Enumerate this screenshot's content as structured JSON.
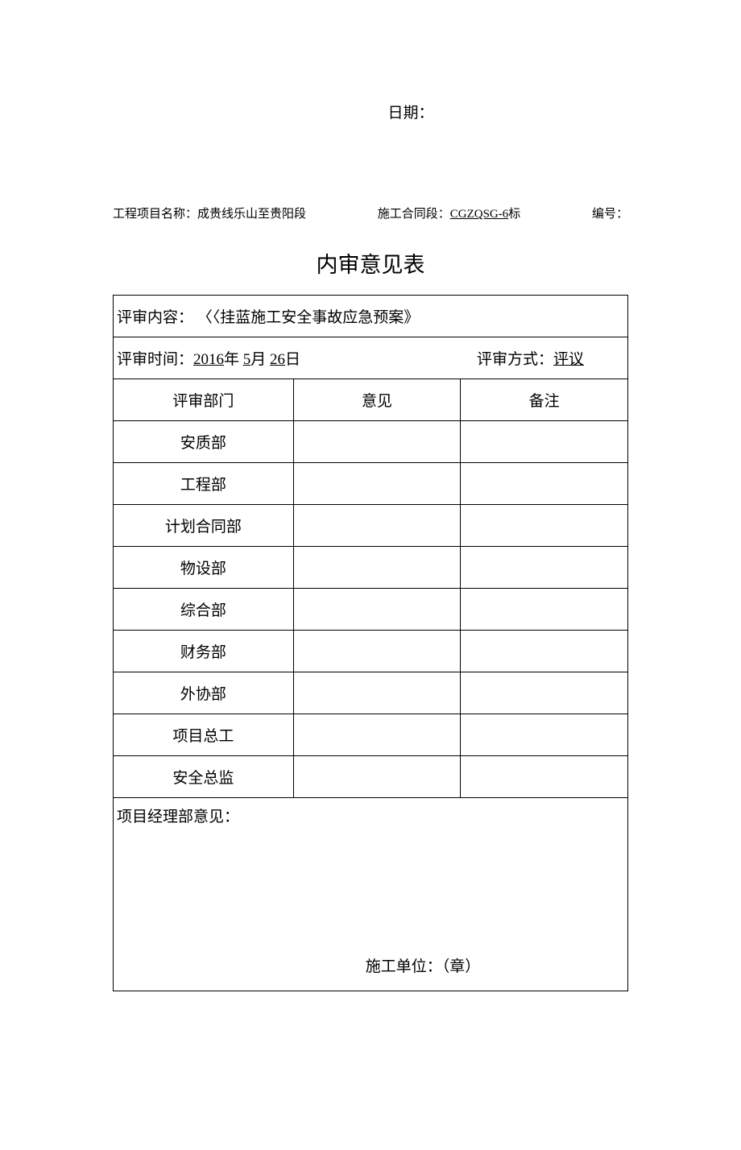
{
  "date_label": "日期：",
  "meta": {
    "project_label": "工程项目名称：",
    "project_value": "成贵线乐山至贵阳段",
    "contract_label": "施工合同段：",
    "contract_value": "CGZQSG-6",
    "contract_suffix": "标",
    "number_label": "编号：",
    "number_value": ""
  },
  "title": "内审意见表",
  "table": {
    "content_label": "评审内容：",
    "content_value": "〈〈挂蓝施工安全事故应急预案》",
    "time_label": "评审时间：",
    "time_year": "2016",
    "time_year_suffix": "年",
    "time_month": "5",
    "time_month_suffix": "月",
    "time_day": "26",
    "time_day_suffix": "日",
    "method_label": "评审方式：",
    "method_value": "评议",
    "headers": {
      "dept": "评审部门",
      "opinion": "意见",
      "remark": "备注"
    },
    "departments": [
      "安质部",
      "工程部",
      "计划合同部",
      "物设部",
      "综合部",
      "财务部",
      "外协部",
      "项目总工",
      "安全总监"
    ],
    "footer_label": "项目经理部意见：",
    "footer_sign": "施工单位：（章）"
  },
  "style": {
    "text_color": "#000000",
    "bg_color": "#ffffff",
    "border_color": "#000000",
    "title_fontsize": 27,
    "body_fontsize": 19,
    "meta_fontsize": 15
  }
}
